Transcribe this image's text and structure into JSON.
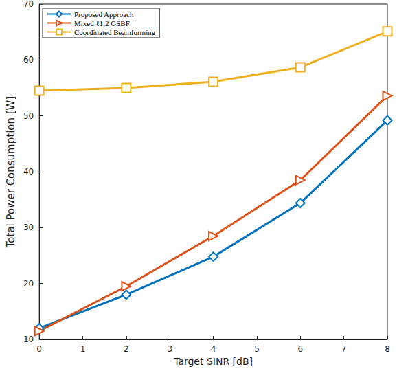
{
  "chart_data": {
    "type": "line",
    "x_label": "Target SINR [dB]",
    "y_label": "Total Power Consumption [W]",
    "xlim": [
      0,
      8
    ],
    "xticks": [
      0,
      1,
      2,
      3,
      4,
      5,
      6,
      7,
      8
    ],
    "ylim": [
      10,
      70
    ],
    "yticks": [
      10,
      20,
      30,
      40,
      50,
      60,
      70
    ],
    "grid": false,
    "legend": "top-left",
    "series": [
      {
        "name": "Proposed Approach",
        "color": "#0072BD",
        "marker": "diamond",
        "x": [
          0,
          2,
          4,
          6,
          8
        ],
        "values": [
          12,
          18,
          24.8,
          34.4,
          49.2
        ]
      },
      {
        "name": "Mixed ℓ1,2 GSBF",
        "color": "#D95319",
        "marker": "triangle",
        "x": [
          0,
          2,
          4,
          6,
          8
        ],
        "values": [
          11.5,
          19.5,
          28.5,
          38.5,
          53.6
        ]
      },
      {
        "name": "Coordinated Beamforming",
        "color": "#EDB120",
        "marker": "square",
        "x": [
          0,
          2,
          4,
          6,
          8
        ],
        "values": [
          54.5,
          55,
          56.1,
          58.7,
          65.1
        ]
      }
    ]
  }
}
